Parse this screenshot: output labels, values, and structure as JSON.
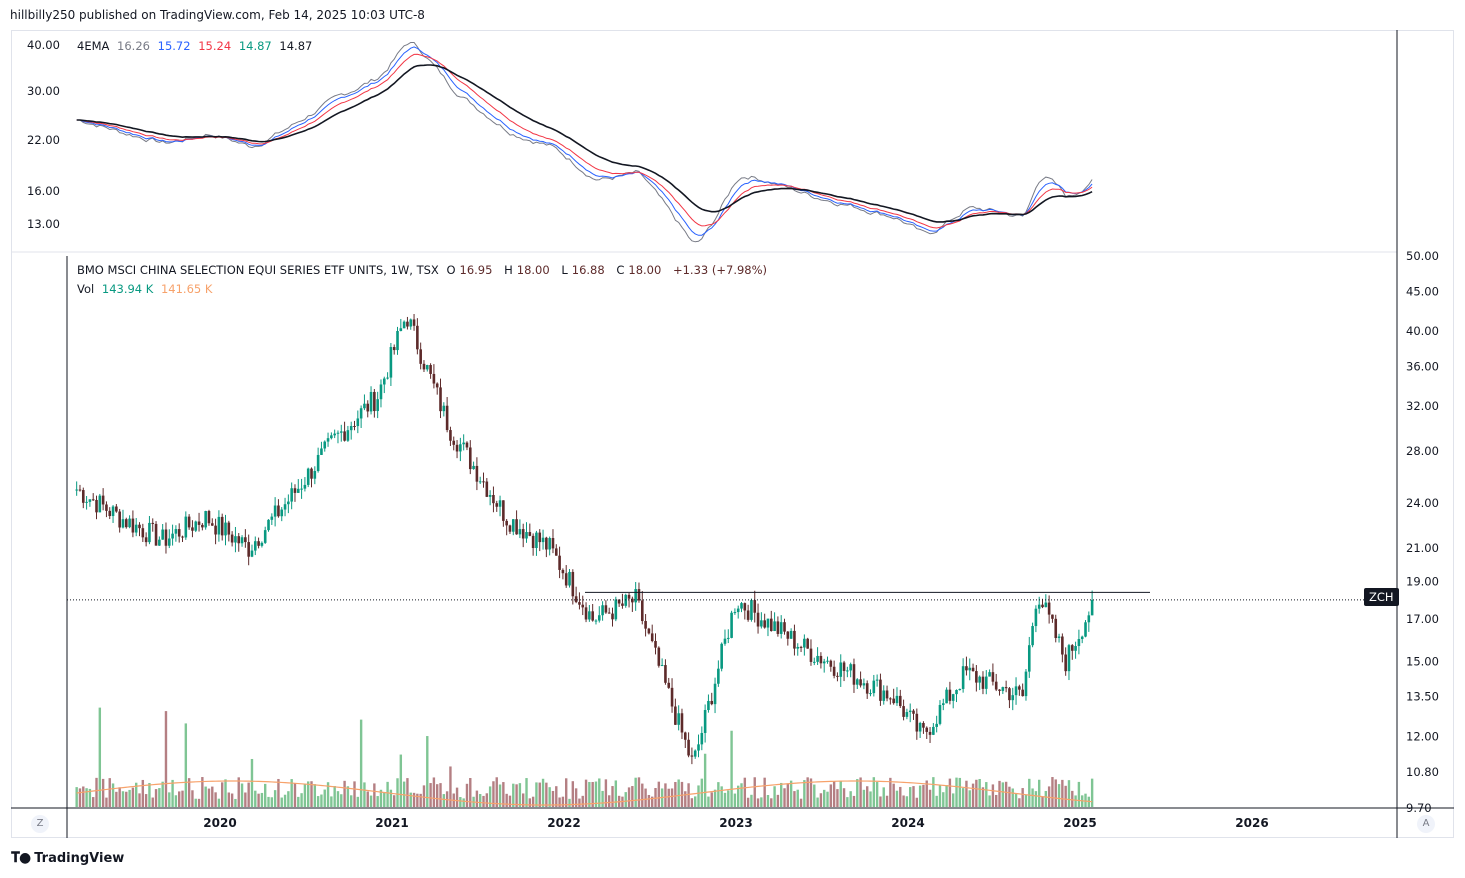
{
  "header": {
    "publisher": "hillbilly250 published on TradingView.com, Feb 14, 2025 10:03 UTC-8"
  },
  "footer": {
    "brand": "TradingView",
    "logo_icon": "tradingview-logo-icon"
  },
  "top_pane": {
    "indicator": "4EMA",
    "values": [
      {
        "value": "16.26",
        "color": "#787b86"
      },
      {
        "value": "15.72",
        "color": "#2962ff"
      },
      {
        "value": "15.24",
        "color": "#f23645"
      },
      {
        "value": "14.87",
        "color": "#089981"
      },
      {
        "value": "14.87",
        "color": "#131722"
      }
    ],
    "y_ticks": [
      "40.00",
      "30.00",
      "22.00",
      "16.00",
      "13.00"
    ]
  },
  "main_pane": {
    "title": "BMO MSCI CHINA SELECTION EQUI SERIES ETF UNITS, 1W, TSX",
    "ohlc": {
      "o_label": "O",
      "o": "16.95",
      "h_label": "H",
      "h": "18.00",
      "l_label": "L",
      "l": "16.88",
      "c_label": "C",
      "c": "18.00",
      "change": "+1.33 (+7.98%)"
    },
    "vol": {
      "label": "Vol",
      "value": "143.94 K",
      "ma": "141.65 K"
    },
    "y_ticks": [
      "50.00",
      "45.00",
      "40.00",
      "36.00",
      "32.00",
      "28.00",
      "24.00",
      "21.00",
      "19.00",
      "17.00",
      "15.00",
      "13.50",
      "12.00",
      "10.80",
      "9.70"
    ],
    "symbol_badge": "ZCH",
    "colors": {
      "up": "#089981",
      "down": "#5d2a2a",
      "vol_up": "#7fc594",
      "vol_down": "#b47f83",
      "vol_ma": "#f7a26b"
    }
  },
  "x_axis": {
    "ticks": [
      "2020",
      "2021",
      "2022",
      "2023",
      "2024",
      "2025",
      "2026"
    ]
  },
  "corner_buttons": {
    "left": "Z",
    "right": "A"
  },
  "chart_data": {
    "type": "candlestick",
    "interval": "1W",
    "x_range": [
      "2019-03",
      "2025-02"
    ],
    "y_scale": "log",
    "ylim": [
      9.7,
      50
    ],
    "price_path_approx": [
      [
        "2019-03",
        25.0
      ],
      [
        "2019-06",
        23.0
      ],
      [
        "2019-09",
        21.5
      ],
      [
        "2019-12",
        23.0
      ],
      [
        "2020-03",
        21.0
      ],
      [
        "2020-06",
        24.5
      ],
      [
        "2020-09",
        29.0
      ],
      [
        "2020-12",
        33.0
      ],
      [
        "2021-02",
        42.0
      ],
      [
        "2021-05",
        30.0
      ],
      [
        "2021-09",
        23.0
      ],
      [
        "2021-12",
        21.0
      ],
      [
        "2022-03",
        17.0
      ],
      [
        "2022-06",
        18.0
      ],
      [
        "2022-10",
        11.0
      ],
      [
        "2023-01",
        18.0
      ],
      [
        "2023-06",
        15.5
      ],
      [
        "2023-12",
        13.5
      ],
      [
        "2024-02",
        12.0
      ],
      [
        "2024-05",
        14.5
      ],
      [
        "2024-09",
        13.5
      ],
      [
        "2024-10",
        18.5
      ],
      [
        "2024-12",
        15.0
      ],
      [
        "2025-02",
        18.0
      ]
    ],
    "horizontal_level": 18.3,
    "last_close": 18.0
  }
}
